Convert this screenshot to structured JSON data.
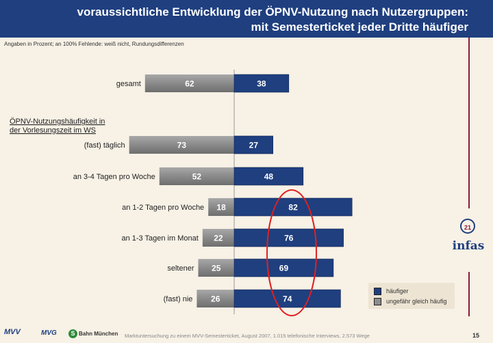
{
  "header": {
    "title_line1": "voraussichtliche Entwicklung der ÖPNV-Nutzung nach Nutzergruppen:",
    "title_line2": "mit Semesterticket jeder Dritte häufiger"
  },
  "note": "Angaben in Prozent; an 100% Fehlende: weiß nicht, Rundungsdifferenzen",
  "colors": {
    "header_bg": "#1f3f7f",
    "navy_bar": "#1f3f7f",
    "gray_bar": "#8c8c8c",
    "highlight_ellipse": "#e02020",
    "frame": "#8b1a3a"
  },
  "chart_data": {
    "type": "bar",
    "orientation": "horizontal-diverging",
    "group_heading": "ÖPNV-Nutzungshäufigkeit in der Vorlesungszeit im WS",
    "group_heading_lines": [
      "ÖPNV-Nutzungshäufigkeit in",
      "der Vorlesungszeit im WS"
    ],
    "categories": [
      "gesamt",
      "(fast) täglich",
      "an 3-4 Tagen pro Woche",
      "an 1-2 Tagen pro Woche",
      "an 1-3 Tagen im Monat",
      "seltener",
      "(fast) nie"
    ],
    "series": [
      {
        "name": "ungefähr gleich häufig",
        "values": [
          62,
          73,
          52,
          18,
          22,
          25,
          26
        ],
        "side": "left"
      },
      {
        "name": "häufiger",
        "values": [
          38,
          27,
          48,
          82,
          76,
          69,
          74
        ],
        "side": "right"
      }
    ],
    "highlight": {
      "shape": "ellipse",
      "categories": [
        "an 1-2 Tagen pro Woche",
        "an 1-3 Tagen im Monat",
        "seltener",
        "(fast) nie"
      ],
      "series": "häufiger"
    },
    "legend": {
      "position": "bottom-right",
      "items": [
        "häufiger",
        "ungefähr gleich häufig"
      ]
    }
  },
  "footer": {
    "text": "Marktuntersuchung zu einem MVV-Semesterticket, August 2007, 1.015 telefonische Interviews, 2.573 Wege",
    "page_number": "15",
    "logos": {
      "mvv": "MVV",
      "mvg": "MVG",
      "sbahn_letter": "S",
      "sbahn": "Bahn München"
    }
  },
  "brand": {
    "number": "21",
    "name": "infas"
  }
}
